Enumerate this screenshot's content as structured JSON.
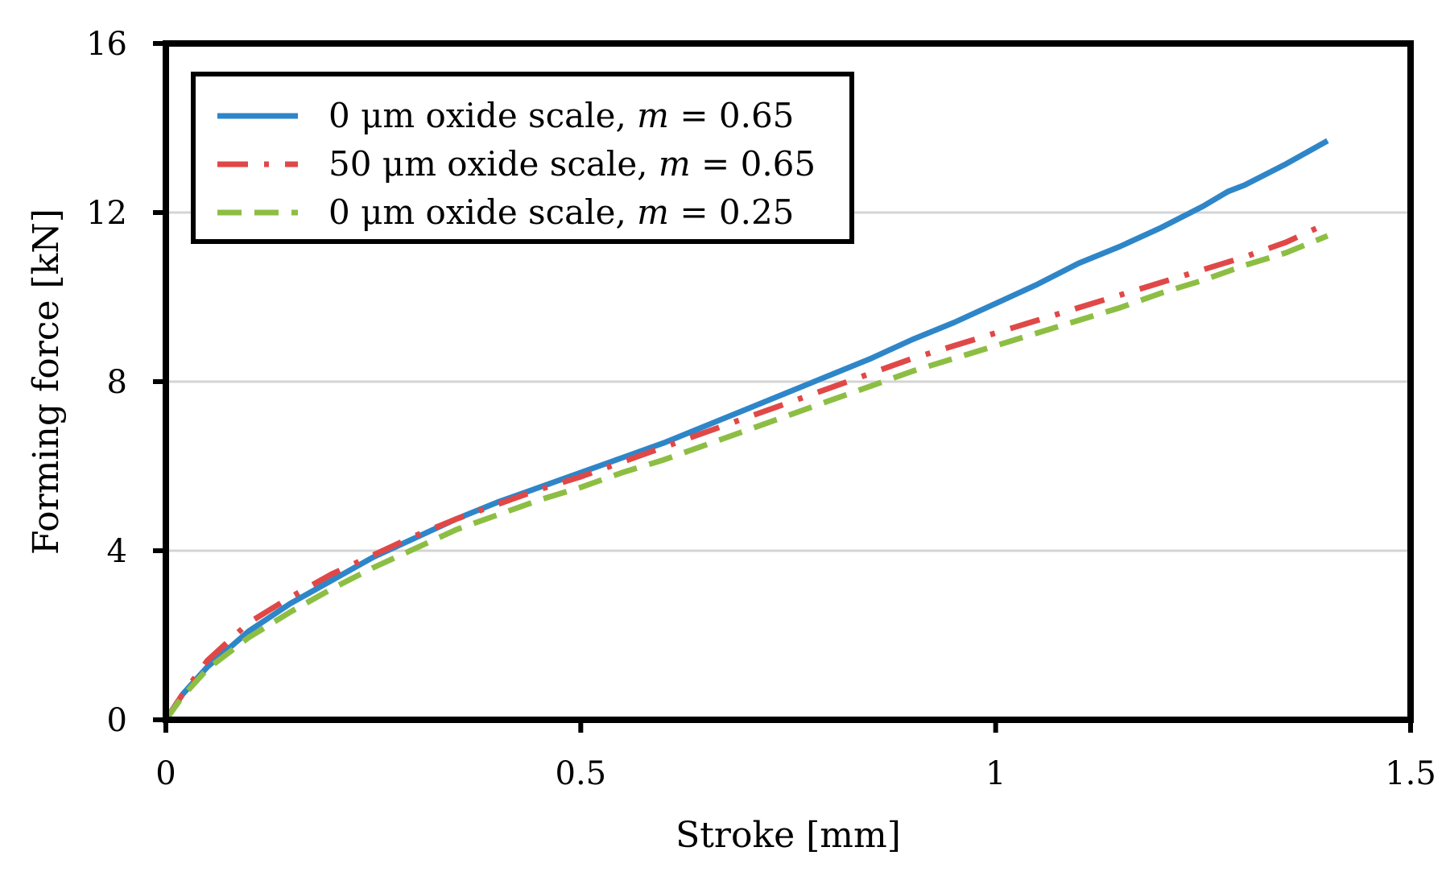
{
  "chart_data": {
    "type": "line",
    "title": "",
    "xlabel": "Stroke [mm]",
    "ylabel": "Forming force [kN]",
    "xlim": [
      0,
      1.5
    ],
    "ylim": [
      0,
      16
    ],
    "xticks": [
      0,
      0.5,
      1,
      1.5
    ],
    "xtick_labels": [
      "0",
      "0.5",
      "1",
      "1.5"
    ],
    "yticks": [
      0,
      4,
      8,
      12,
      16
    ],
    "ytick_labels": [
      "0",
      "4",
      "8",
      "12",
      "16"
    ],
    "grid": "horizontal",
    "legend_position": "top-left",
    "series": [
      {
        "name": "0 μm oxide scale, m = 0.65",
        "legend_prefix": "0 μm oxide scale, ",
        "legend_var": "m",
        "legend_suffix": " = 0.65",
        "color": "#2E86C8",
        "dash": "solid",
        "x": [
          0,
          0.02,
          0.05,
          0.1,
          0.15,
          0.2,
          0.25,
          0.3,
          0.35,
          0.4,
          0.45,
          0.5,
          0.55,
          0.6,
          0.65,
          0.7,
          0.75,
          0.8,
          0.85,
          0.9,
          0.95,
          1.0,
          1.05,
          1.1,
          1.15,
          1.2,
          1.25,
          1.28,
          1.3,
          1.35,
          1.4
        ],
        "y": [
          0,
          0.6,
          1.25,
          2.1,
          2.75,
          3.3,
          3.85,
          4.3,
          4.75,
          5.15,
          5.5,
          5.85,
          6.2,
          6.55,
          6.95,
          7.35,
          7.75,
          8.15,
          8.55,
          9.0,
          9.4,
          9.85,
          10.3,
          10.8,
          11.2,
          11.65,
          12.15,
          12.5,
          12.65,
          13.15,
          13.7
        ]
      },
      {
        "name": "50 μm oxide scale, m = 0.65",
        "legend_prefix": "50 μm oxide scale, ",
        "legend_var": "m",
        "legend_suffix": " = 0.65",
        "color": "#E04848",
        "dash": "dashdot",
        "x": [
          0,
          0.02,
          0.05,
          0.1,
          0.15,
          0.2,
          0.25,
          0.3,
          0.35,
          0.4,
          0.45,
          0.5,
          0.55,
          0.6,
          0.65,
          0.7,
          0.75,
          0.8,
          0.85,
          0.9,
          0.95,
          1.0,
          1.05,
          1.1,
          1.15,
          1.2,
          1.25,
          1.3,
          1.35,
          1.4
        ],
        "y": [
          0,
          0.6,
          1.4,
          2.3,
          2.9,
          3.45,
          3.9,
          4.35,
          4.75,
          5.1,
          5.45,
          5.75,
          6.1,
          6.45,
          6.8,
          7.15,
          7.5,
          7.85,
          8.2,
          8.55,
          8.85,
          9.15,
          9.45,
          9.75,
          10.05,
          10.35,
          10.65,
          10.95,
          11.3,
          11.75
        ]
      },
      {
        "name": "0 μm oxide scale, m = 0.25",
        "legend_prefix": "0 μm oxide scale, ",
        "legend_var": "m",
        "legend_suffix": " = 0.25",
        "color": "#8DBE44",
        "dash": "dashed",
        "x": [
          0,
          0.02,
          0.05,
          0.1,
          0.15,
          0.2,
          0.25,
          0.3,
          0.35,
          0.4,
          0.45,
          0.5,
          0.55,
          0.6,
          0.65,
          0.7,
          0.75,
          0.8,
          0.85,
          0.9,
          0.95,
          1.0,
          1.05,
          1.1,
          1.15,
          1.2,
          1.25,
          1.3,
          1.35,
          1.4
        ],
        "y": [
          0,
          0.55,
          1.2,
          1.95,
          2.55,
          3.1,
          3.6,
          4.05,
          4.5,
          4.85,
          5.2,
          5.5,
          5.85,
          6.15,
          6.5,
          6.85,
          7.2,
          7.55,
          7.9,
          8.25,
          8.55,
          8.85,
          9.15,
          9.45,
          9.75,
          10.1,
          10.4,
          10.75,
          11.05,
          11.45
        ]
      }
    ]
  }
}
